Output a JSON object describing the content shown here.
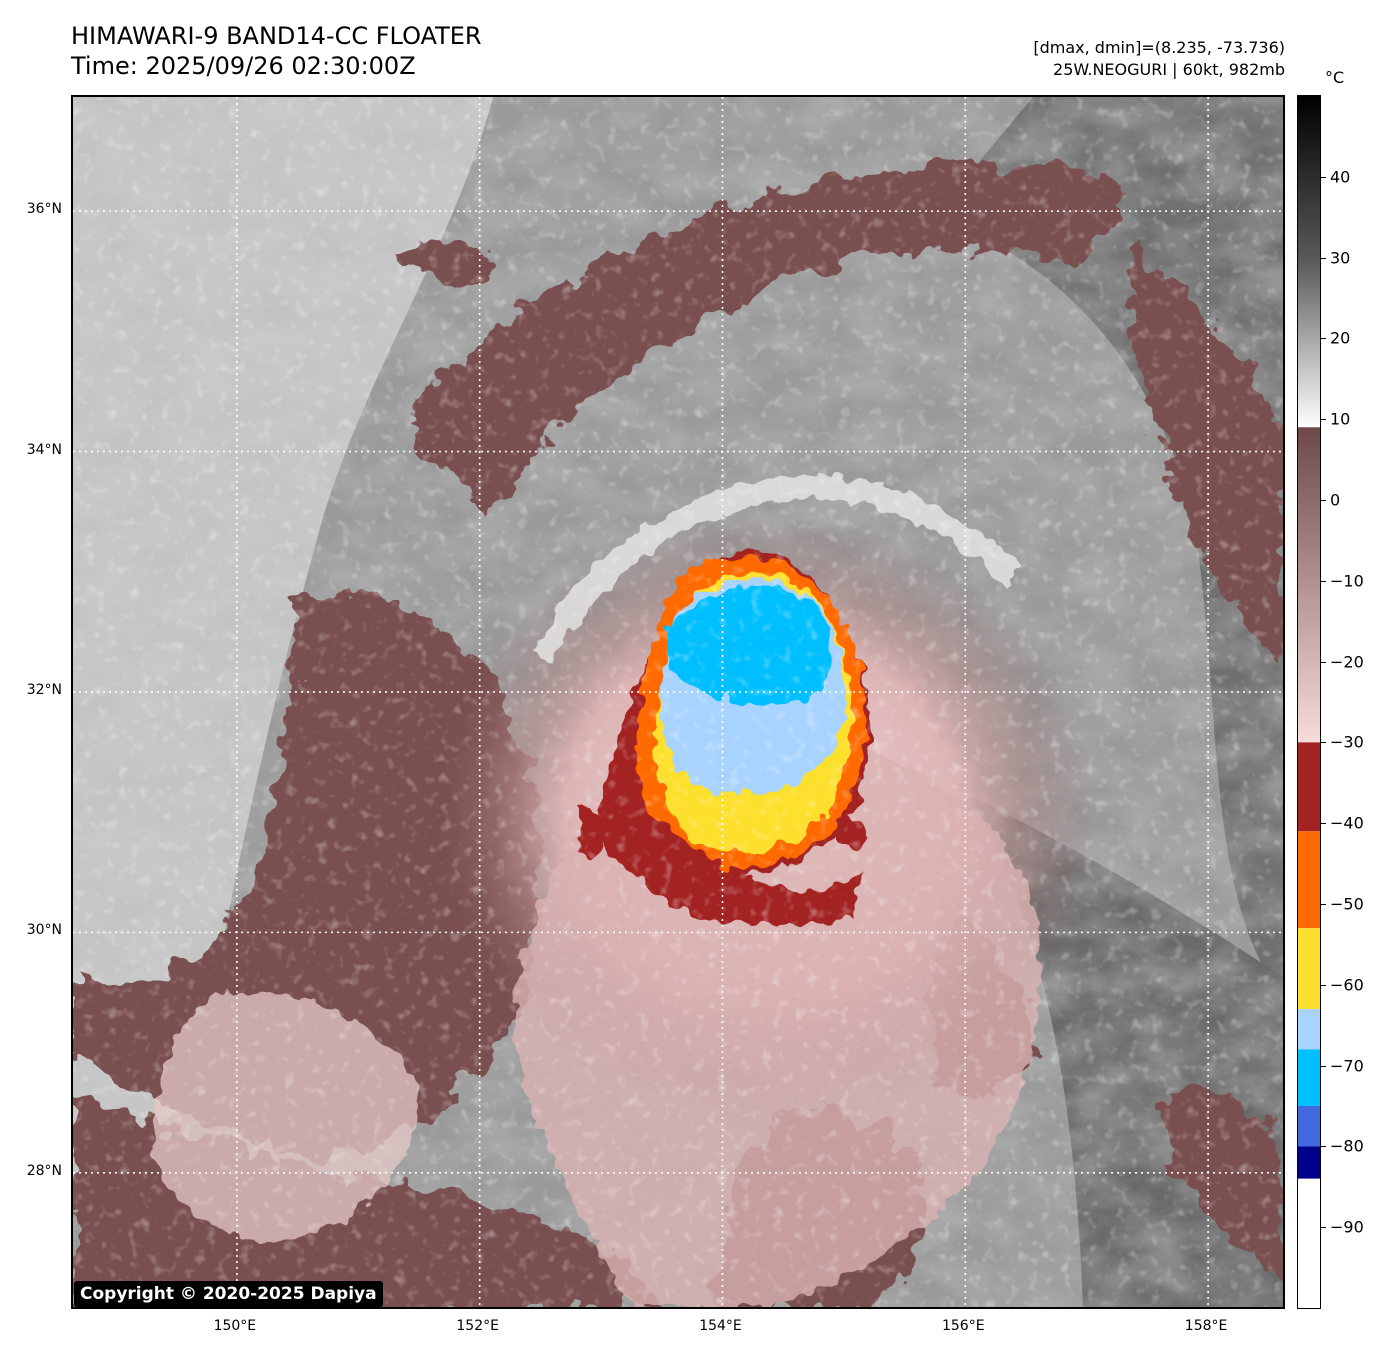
{
  "title": {
    "line1": "HIMAWARI-9 BAND14-CC FLOATER",
    "line2": "Time: 2025/09/26 02:30:00Z"
  },
  "info": {
    "range": "[dmax, dmin]=(8.235, -73.736)",
    "storm": "25W.NEOGURI | 60kt, 982mb"
  },
  "map": {
    "lat_labels": [
      "36°N",
      "34°N",
      "32°N",
      "30°N",
      "28°N"
    ],
    "lat_values": [
      36,
      34,
      32,
      30,
      28
    ],
    "lon_labels": [
      "150°E",
      "152°E",
      "154°E",
      "156°E",
      "158°E"
    ],
    "lon_values": [
      150,
      152,
      154,
      156,
      158
    ],
    "lat_range": [
      26.85,
      36.95
    ],
    "lon_range": [
      148.65,
      158.65
    ],
    "storm_center": {
      "lat": 32.15,
      "lon": 154.1
    }
  },
  "copyright": "Copyright © 2020-2025 Dapiya",
  "colorbar": {
    "unit": "°C",
    "range": [
      -100,
      50
    ],
    "tick_labels": [
      "40",
      "30",
      "20",
      "10",
      "0",
      "−10",
      "−20",
      "−30",
      "−40",
      "−50",
      "−60",
      "−70",
      "−80",
      "−90"
    ],
    "tick_values": [
      40,
      30,
      20,
      10,
      0,
      -10,
      -20,
      -30,
      -40,
      -50,
      -60,
      -70,
      -80,
      -90
    ],
    "colors": {
      "warm_black": "#000000",
      "gray_mid": "#5a5a5a",
      "white_10": "#ffffff",
      "brown_top": "#6e4848",
      "pink_bottom": "#f7dcdc",
      "dark_red": "#a32222",
      "orange": "#ff6a00",
      "yellow": "#fde02e",
      "light_blue": "#a8d3ff",
      "cyan": "#00bfff",
      "royal_blue": "#4169e1",
      "navy": "#00008b",
      "white_cold": "#ffffff"
    }
  }
}
